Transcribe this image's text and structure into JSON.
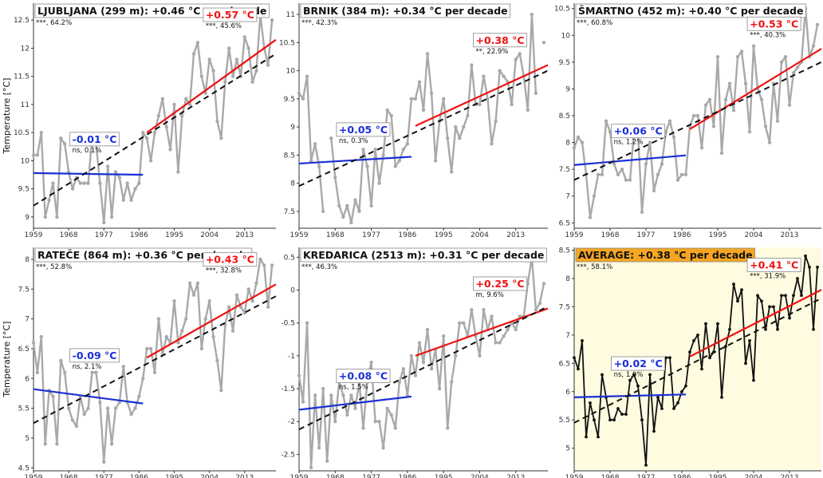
{
  "figure": {
    "ylabel": "Temperature [°C]"
  },
  "colors": {
    "observed": "#a9a9a9",
    "observed_average": "#111111",
    "early_trend": "#1a2fd6",
    "late_trend": "#ee1111",
    "overall_trend": "#111111",
    "average_panel_bg": "#fffbe0",
    "average_title_bg": "#f5a623"
  },
  "chart_data": [
    {
      "type": "line",
      "title": "LJUBLJANA (299 m): +0.46 °C per decade",
      "significance": "***, 64.2%",
      "early": {
        "label": "-0.01 °C",
        "stats": "ns, 0.1%",
        "start": 9.78,
        "end": 9.75
      },
      "late": {
        "label": "+0.57 °C",
        "stats": "***, 45.6%",
        "start": 10.5,
        "end": 12.15
      },
      "overall": {
        "start": 9.2,
        "end": 11.9
      },
      "ylim": [
        8.8,
        12.8
      ],
      "yticks": [
        9.0,
        9.5,
        10.0,
        10.5,
        11.0,
        11.5,
        12.0,
        12.5
      ],
      "xticks": [
        "1959",
        "1968",
        "1977",
        "1986",
        "1995",
        "2004",
        "2013"
      ],
      "x_range": [
        1959,
        2021
      ],
      "values": [
        10.1,
        10.1,
        10.5,
        9.0,
        9.3,
        9.6,
        9.0,
        10.4,
        10.3,
        9.8,
        9.5,
        9.7,
        9.6,
        9.6,
        9.6,
        10.4,
        10.3,
        9.6,
        8.9,
        9.9,
        9.0,
        9.8,
        9.7,
        9.3,
        9.6,
        9.3,
        9.5,
        9.6,
        10.5,
        10.4,
        10.0,
        10.5,
        10.8,
        11.1,
        10.6,
        10.2,
        11.0,
        9.8,
        10.8,
        11.1,
        11.0,
        11.9,
        12.1,
        11.5,
        11.2,
        11.8,
        11.6,
        10.7,
        10.4,
        11.4,
        12.0,
        11.5,
        11.8,
        11.5,
        12.2,
        12.0,
        11.4,
        11.6,
        12.6,
        12.0,
        11.7,
        12.5
      ]
    },
    {
      "type": "line",
      "title": "BRNIK (384 m): +0.34 °C per decade",
      "significance": "***, 42.3%",
      "early": {
        "label": "+0.05 °C",
        "stats": "ns, 0.3%",
        "start": 8.35,
        "end": 8.47
      },
      "late": {
        "label": "+0.38 °C",
        "stats": "**, 22.9%",
        "start": 9.02,
        "end": 10.1
      },
      "overall": {
        "start": 7.95,
        "end": 10.0
      },
      "ylim": [
        7.2,
        11.2
      ],
      "yticks": [
        7.5,
        8.0,
        8.5,
        9.0,
        9.5,
        10.0,
        10.5,
        11.0
      ],
      "xticks": [
        "1959",
        "1968",
        "1977",
        "1986",
        "1995",
        "2004",
        "2013"
      ],
      "x_range": [
        1959,
        2021
      ],
      "values": [
        9.6,
        9.5,
        9.9,
        8.4,
        8.7,
        8.3,
        7.5,
        null,
        8.8,
        8.1,
        7.6,
        7.4,
        7.6,
        7.3,
        7.7,
        7.5,
        8.6,
        8.3,
        7.6,
        8.6,
        8.0,
        8.5,
        9.3,
        9.2,
        8.3,
        8.4,
        8.6,
        8.7,
        9.5,
        9.5,
        9.8,
        9.3,
        10.3,
        9.6,
        8.4,
        9.1,
        9.5,
        8.8,
        8.2,
        9.0,
        8.8,
        9.0,
        9.2,
        10.1,
        9.4,
        9.4,
        9.9,
        9.5,
        8.7,
        9.1,
        10.0,
        9.9,
        9.8,
        9.4,
        10.2,
        10.3,
        9.9,
        9.3,
        11.0,
        9.6,
        null,
        10.5
      ]
    },
    {
      "type": "line",
      "title": "ŠMARTNO (452 m): +0.40 °C per decade",
      "significance": "***, 60.8%",
      "early": {
        "label": "+0.06 °C",
        "stats": "ns, 1.2%",
        "start": 7.58,
        "end": 7.76
      },
      "late": {
        "label": "+0.53 °C",
        "stats": "***, 40.3%",
        "start": 8.25,
        "end": 9.75
      },
      "overall": {
        "start": 7.3,
        "end": 9.5
      },
      "ylim": [
        6.4,
        10.6
      ],
      "yticks": [
        6.5,
        7.0,
        7.5,
        8.0,
        8.5,
        9.0,
        9.5,
        10.0,
        10.5
      ],
      "xticks": [
        "1959",
        "1968",
        "1977",
        "1986",
        "1995",
        "2004",
        "2013"
      ],
      "x_range": [
        1959,
        2021
      ],
      "values": [
        7.9,
        8.1,
        8.0,
        7.4,
        6.6,
        7.0,
        7.4,
        7.4,
        8.4,
        8.2,
        7.6,
        7.4,
        7.5,
        7.3,
        7.3,
        8.2,
        8.2,
        6.7,
        7.6,
        8.0,
        7.1,
        7.4,
        7.6,
        8.2,
        8.4,
        8.1,
        7.3,
        7.4,
        7.4,
        8.3,
        8.5,
        8.5,
        7.9,
        8.7,
        8.8,
        8.3,
        9.6,
        7.8,
        8.8,
        9.1,
        8.6,
        9.6,
        9.7,
        9.1,
        8.2,
        9.8,
        9.0,
        8.8,
        8.3,
        8.0,
        9.1,
        8.4,
        9.5,
        9.6,
        8.7,
        9.3,
        9.4,
        9.5,
        10.5,
        9.6,
        9.8,
        10.2
      ]
    },
    {
      "type": "line",
      "title": "RATEČE (864 m): +0.36 °C per decade",
      "significance": "***, 52.8%",
      "early": {
        "label": "-0.09 °C",
        "stats": "ns, 2.1%",
        "start": 5.82,
        "end": 5.58
      },
      "late": {
        "label": "+0.43 °C",
        "stats": "***, 32.8%",
        "start": 6.35,
        "end": 7.58
      },
      "overall": {
        "start": 5.25,
        "end": 7.38
      },
      "ylim": [
        4.45,
        8.2
      ],
      "yticks": [
        4.5,
        5.0,
        5.5,
        6.0,
        6.5,
        7.0,
        7.5,
        8.0
      ],
      "xticks": [
        "1959",
        "1968",
        "1977",
        "1986",
        "1995",
        "2004",
        "2013"
      ],
      "x_range": [
        1959,
        2021
      ],
      "values": [
        6.6,
        6.1,
        6.7,
        4.9,
        5.8,
        5.7,
        4.9,
        6.3,
        6.1,
        5.5,
        5.3,
        5.2,
        5.7,
        5.4,
        5.5,
        6.1,
        6.1,
        5.6,
        4.6,
        5.5,
        4.9,
        5.5,
        5.6,
        6.2,
        5.6,
        5.4,
        5.5,
        5.7,
        6.0,
        6.5,
        6.5,
        6.1,
        7.0,
        6.4,
        6.7,
        6.6,
        7.3,
        6.6,
        6.8,
        7.0,
        7.6,
        7.4,
        7.6,
        6.5,
        7.0,
        7.3,
        6.7,
        6.3,
        5.8,
        6.9,
        7.2,
        6.8,
        7.4,
        7.2,
        7.1,
        7.5,
        7.3,
        7.6,
        8.0,
        7.9,
        7.2,
        7.9
      ]
    },
    {
      "type": "line",
      "title": "KREDARICA (2513 m): +0.31 °C per decade",
      "significance": "***, 46.3%",
      "early": {
        "label": "+0.08 °C",
        "stats": "ns, 1.5%",
        "start": -1.82,
        "end": -1.62
      },
      "late": {
        "label": "+0.25 °C",
        "stats": "m, 9.6%",
        "start": -1.0,
        "end": -0.28
      },
      "overall": {
        "start": -2.12,
        "end": -0.25
      },
      "ylim": [
        -2.75,
        0.65
      ],
      "yticks": [
        -2.5,
        -2.0,
        -1.5,
        -1.0,
        -0.5,
        0.0,
        0.5
      ],
      "xticks": [
        "1959",
        "1968",
        "1977",
        "1986",
        "1995",
        "2004",
        "2013"
      ],
      "x_range": [
        1959,
        2021
      ],
      "values": [
        -1.3,
        -1.7,
        -0.5,
        -2.7,
        -1.6,
        -2.4,
        -1.5,
        -2.6,
        -1.6,
        -2.0,
        -1.4,
        -1.6,
        -1.9,
        -1.6,
        -1.8,
        -1.4,
        -2.1,
        -1.4,
        -1.1,
        -2.0,
        -2.0,
        -2.4,
        -1.8,
        -1.9,
        -2.1,
        -1.4,
        -1.2,
        -1.6,
        -1.0,
        -1.3,
        -0.8,
        -1.1,
        -0.6,
        -1.2,
        -0.9,
        -1.5,
        -0.7,
        -2.1,
        -1.4,
        -1.0,
        -0.5,
        -0.5,
        -0.7,
        -0.3,
        -0.7,
        -1.0,
        -0.3,
        -0.6,
        -0.4,
        -0.8,
        -0.8,
        -0.7,
        -0.6,
        -0.5,
        -0.6,
        -0.4,
        -0.4,
        0.1,
        0.5,
        -0.3,
        -0.2,
        0.1
      ]
    },
    {
      "type": "line",
      "title": "AVERAGE: +0.38 °C per decade",
      "significance": "***, 58.1%",
      "early": {
        "label": "+0.02 °C",
        "stats": "ns, 1.0%",
        "start": 5.9,
        "end": 5.95
      },
      "late": {
        "label": "+0.41 °C",
        "stats": "***, 31.9%",
        "start": 6.62,
        "end": 7.8
      },
      "overall": {
        "start": 5.45,
        "end": 7.65
      },
      "ylim": [
        4.6,
        8.55
      ],
      "yticks": [
        5.0,
        5.5,
        6.0,
        6.5,
        7.0,
        7.5,
        8.0,
        8.5
      ],
      "xticks": [
        "1959",
        "1968",
        "1977",
        "1986",
        "1995",
        "2004",
        "2013"
      ],
      "x_range": [
        1959,
        2021
      ],
      "values": [
        6.6,
        6.4,
        6.9,
        5.2,
        5.8,
        5.5,
        5.2,
        6.3,
        5.9,
        5.5,
        5.5,
        5.7,
        5.6,
        5.6,
        6.2,
        6.3,
        6.1,
        5.5,
        4.7,
        6.3,
        5.3,
        5.9,
        5.7,
        6.6,
        6.6,
        5.7,
        5.8,
        6.0,
        6.1,
        6.7,
        6.9,
        7.0,
        6.4,
        7.2,
        6.6,
        6.7,
        7.2,
        5.9,
        6.8,
        7.1,
        7.9,
        7.6,
        7.8,
        6.5,
        6.9,
        6.2,
        7.7,
        7.6,
        7.1,
        7.5,
        7.5,
        7.1,
        7.7,
        7.7,
        7.3,
        7.7,
        8.0,
        7.7,
        8.4,
        8.2,
        7.1,
        8.2
      ]
    }
  ]
}
